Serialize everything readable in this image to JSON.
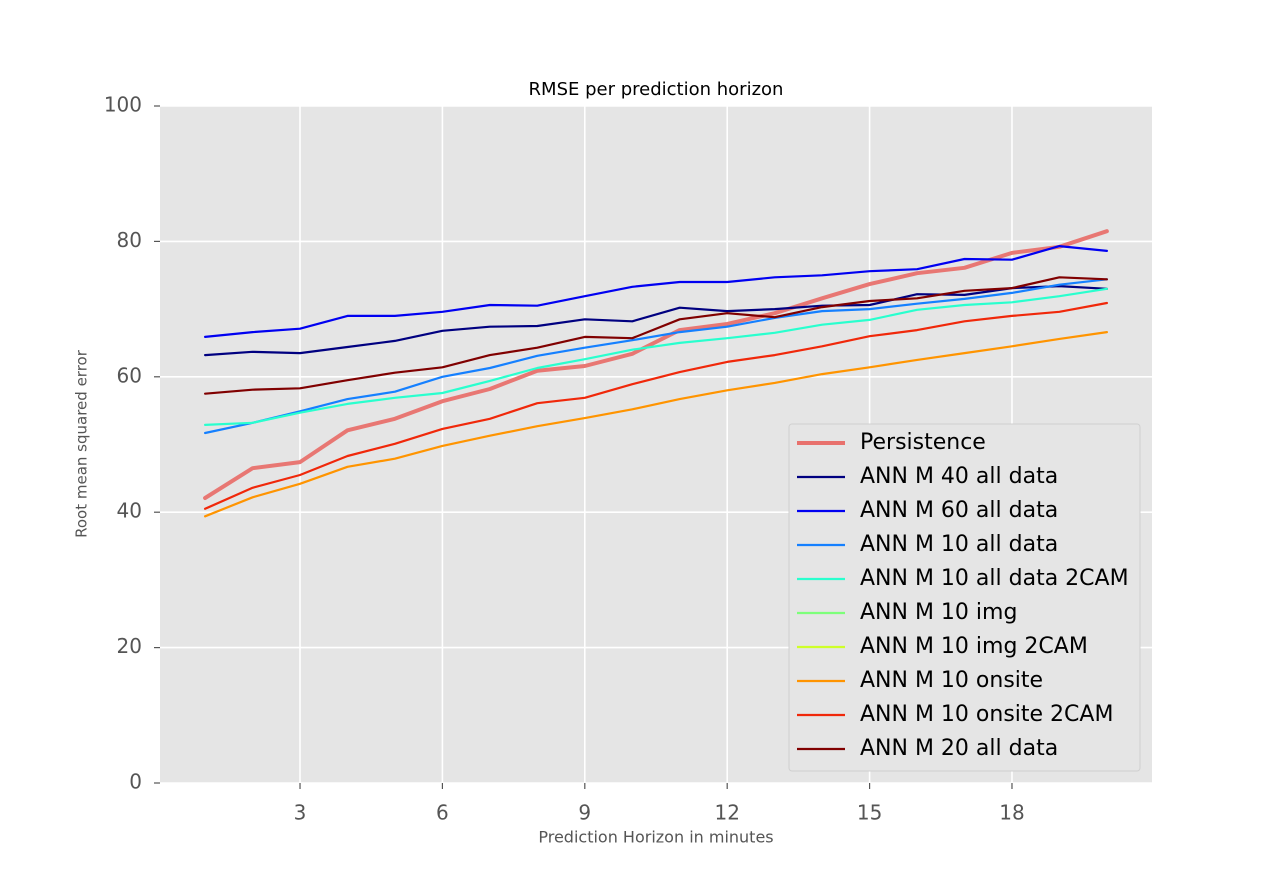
{
  "chart_data": {
    "type": "line",
    "title": "RMSE per prediction horizon",
    "x_label": "Prediction Horizon in minutes",
    "y_label": "Root mean squared error",
    "x": [
      1,
      2,
      3,
      4,
      5,
      6,
      7,
      8,
      9,
      10,
      11,
      12,
      13,
      14,
      15,
      16,
      17,
      18,
      19,
      20
    ],
    "xlim": [
      0.05,
      20.95
    ],
    "xticks": [
      3,
      6,
      9,
      12,
      15,
      18
    ],
    "ylim": [
      0,
      100
    ],
    "yticks": [
      0,
      20,
      40,
      60,
      80,
      100
    ],
    "grid": true,
    "legend": "lower right",
    "series": [
      {
        "name": "Persistence",
        "color": "#e8716d",
        "width": 4,
        "values": [
          42.1,
          46.5,
          47.4,
          52.1,
          53.8,
          56.4,
          58.2,
          60.9,
          61.6,
          63.4,
          66.9,
          67.8,
          69.4,
          71.6,
          73.7,
          75.3,
          76.1,
          78.3,
          79.2,
          81.5
        ]
      },
      {
        "name": "ANN M 40 all data",
        "color": "#000080",
        "values": [
          63.2,
          63.7,
          63.5,
          64.4,
          65.3,
          66.8,
          67.4,
          67.5,
          68.5,
          68.2,
          70.2,
          69.7,
          70.0,
          70.5,
          70.6,
          72.2,
          72.1,
          73.1,
          73.4,
          73.0
        ]
      },
      {
        "name": "ANN M 60 all data",
        "color": "#0000f1",
        "values": [
          65.9,
          66.6,
          67.1,
          69.0,
          69.0,
          69.6,
          70.6,
          70.5,
          71.9,
          73.3,
          74.0,
          74.0,
          74.7,
          75.0,
          75.6,
          75.9,
          77.4,
          77.3,
          79.3,
          78.6
        ]
      },
      {
        "name": "ANN M 10 all data",
        "color": "#1580ff",
        "values": [
          51.7,
          53.2,
          54.9,
          56.7,
          57.8,
          60.0,
          61.3,
          63.1,
          64.3,
          65.4,
          66.6,
          67.4,
          68.7,
          69.7,
          70.0,
          70.8,
          71.5,
          72.4,
          73.6,
          74.4
        ]
      },
      {
        "name": "ANN M 10 all data 2CAM",
        "color": "#29ffce",
        "values": [
          52.9,
          53.2,
          54.7,
          56.0,
          56.9,
          57.6,
          59.4,
          61.3,
          62.6,
          64.0,
          65.0,
          65.7,
          66.5,
          67.7,
          68.4,
          69.9,
          70.6,
          71.0,
          71.9,
          73.0
        ]
      },
      {
        "name": "ANN M 10 img",
        "color": "#7dff7a",
        "values": [
          null,
          null,
          null,
          null,
          null,
          null,
          null,
          null,
          null,
          null,
          null,
          null,
          null,
          null,
          null,
          null,
          null,
          null,
          null,
          null
        ]
      },
      {
        "name": "ANN M 10 img 2CAM",
        "color": "#ceff29",
        "values": [
          null,
          null,
          null,
          null,
          null,
          null,
          null,
          null,
          null,
          null,
          null,
          null,
          null,
          null,
          null,
          null,
          null,
          null,
          null,
          null
        ]
      },
      {
        "name": "ANN M 10 onsite",
        "color": "#ff9400",
        "values": [
          39.4,
          42.2,
          44.2,
          46.7,
          47.9,
          49.8,
          51.3,
          52.7,
          53.9,
          55.2,
          56.7,
          58.0,
          59.1,
          60.4,
          61.4,
          62.5,
          63.5,
          64.5,
          65.6,
          66.6
        ]
      },
      {
        "name": "ANN M 10 onsite 2CAM",
        "color": "#f0280a",
        "values": [
          40.5,
          43.6,
          45.5,
          48.3,
          50.1,
          52.3,
          53.8,
          56.1,
          56.9,
          58.9,
          60.7,
          62.2,
          63.2,
          64.5,
          66.0,
          66.9,
          68.2,
          69.0,
          69.6,
          70.9
        ]
      },
      {
        "name": "ANN M 20 all data",
        "color": "#800000",
        "values": [
          57.5,
          58.1,
          58.3,
          59.5,
          60.6,
          61.4,
          63.2,
          64.3,
          65.9,
          65.7,
          68.5,
          69.4,
          68.8,
          70.3,
          71.2,
          71.6,
          72.7,
          73.1,
          74.7,
          74.4
        ]
      }
    ]
  }
}
